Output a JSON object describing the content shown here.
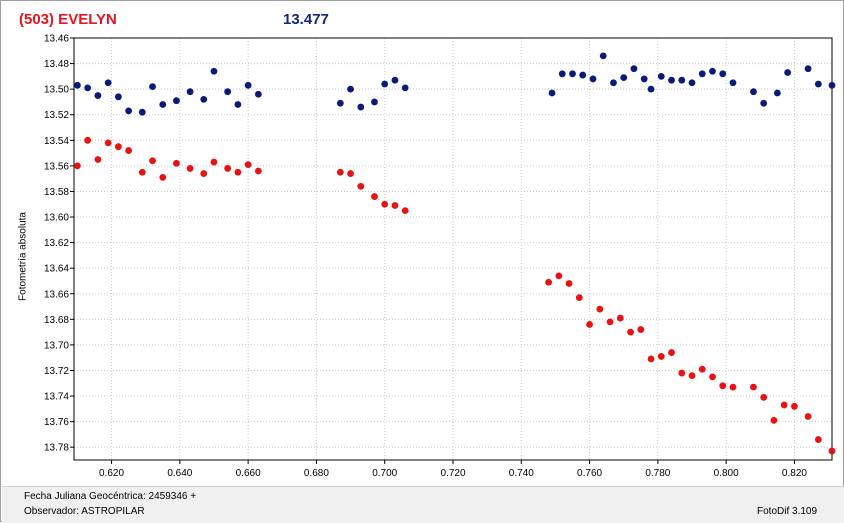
{
  "header": {
    "object_name": "(503) EVELYN",
    "magnitude": "13.477"
  },
  "footer": {
    "julian_date_label": "Fecha Juliana Geocéntrica: 2459346 +",
    "observer_label": "Observador: ASTROPILAR",
    "software_label": "FotoDif 3.109"
  },
  "colors": {
    "comparison": "#0a1a78",
    "target": "#e81212",
    "title_left": "#e8141e",
    "title_right": "#142878"
  },
  "chart_data": {
    "type": "scatter",
    "title": "",
    "xlabel": "",
    "ylabel": "Fotometría absoluta",
    "xlim": [
      0.609,
      0.831
    ],
    "ylim": [
      13.46,
      13.79
    ],
    "y_inverted": true,
    "grid": true,
    "x_ticks": [
      "0.620",
      "0.640",
      "0.660",
      "0.680",
      "0.700",
      "0.720",
      "0.740",
      "0.760",
      "0.780",
      "0.800",
      "0.820"
    ],
    "y_ticks": [
      "13.46",
      "13.48",
      "13.50",
      "13.52",
      "13.54",
      "13.56",
      "13.58",
      "13.60",
      "13.62",
      "13.64",
      "13.66",
      "13.68",
      "13.70",
      "13.72",
      "13.74",
      "13.76",
      "13.78"
    ],
    "series": [
      {
        "color": "#0a1a78",
        "x": [
          0.61,
          0.613,
          0.616,
          0.619,
          0.622,
          0.625,
          0.629,
          0.632,
          0.635,
          0.639,
          0.643,
          0.647,
          0.65,
          0.654,
          0.657,
          0.66,
          0.663,
          0.687,
          0.69,
          0.693,
          0.697,
          0.7,
          0.703,
          0.706,
          0.749,
          0.752,
          0.755,
          0.758,
          0.761,
          0.764,
          0.767,
          0.77,
          0.773,
          0.776,
          0.778,
          0.781,
          0.784,
          0.787,
          0.79,
          0.793,
          0.796,
          0.799,
          0.802,
          0.808,
          0.811,
          0.815,
          0.818,
          0.824,
          0.827,
          0.831
        ],
        "y": [
          13.497,
          13.499,
          13.505,
          13.495,
          13.506,
          13.517,
          13.518,
          13.498,
          13.512,
          13.509,
          13.502,
          13.508,
          13.486,
          13.502,
          13.512,
          13.497,
          13.504,
          13.511,
          13.5,
          13.514,
          13.51,
          13.496,
          13.493,
          13.499,
          13.503,
          13.488,
          13.488,
          13.489,
          13.492,
          13.474,
          13.495,
          13.491,
          13.484,
          13.492,
          13.5,
          13.49,
          13.493,
          13.493,
          13.495,
          13.488,
          13.486,
          13.488,
          13.495,
          13.502,
          13.511,
          13.503,
          13.487,
          13.484,
          13.496,
          13.497
        ]
      },
      {
        "color": "#e81212",
        "x": [
          0.61,
          0.613,
          0.616,
          0.619,
          0.622,
          0.625,
          0.629,
          0.632,
          0.635,
          0.639,
          0.643,
          0.647,
          0.65,
          0.654,
          0.657,
          0.66,
          0.663,
          0.687,
          0.69,
          0.693,
          0.697,
          0.7,
          0.703,
          0.706,
          0.748,
          0.751,
          0.754,
          0.757,
          0.76,
          0.763,
          0.766,
          0.769,
          0.772,
          0.775,
          0.778,
          0.781,
          0.784,
          0.787,
          0.79,
          0.793,
          0.796,
          0.799,
          0.802,
          0.808,
          0.811,
          0.814,
          0.817,
          0.82,
          0.824,
          0.827,
          0.831
        ],
        "y": [
          13.56,
          13.54,
          13.555,
          13.542,
          13.545,
          13.548,
          13.565,
          13.556,
          13.569,
          13.558,
          13.562,
          13.566,
          13.557,
          13.562,
          13.565,
          13.559,
          13.564,
          13.565,
          13.566,
          13.576,
          13.584,
          13.59,
          13.591,
          13.595,
          13.651,
          13.646,
          13.652,
          13.663,
          13.684,
          13.672,
          13.682,
          13.679,
          13.69,
          13.688,
          13.711,
          13.709,
          13.706,
          13.722,
          13.724,
          13.719,
          13.725,
          13.732,
          13.733,
          13.733,
          13.741,
          13.759,
          13.747,
          13.748,
          13.756,
          13.774,
          13.783
        ]
      }
    ]
  }
}
